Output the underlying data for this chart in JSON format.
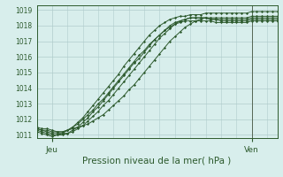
{
  "title": "",
  "xlabel": "Pression niveau de la mer( hPa )",
  "ylabel": "",
  "background_color": "#d8eeec",
  "grid_color": "#b0cccc",
  "line_color": "#2d5a2d",
  "ylim": [
    1010.8,
    1019.3
  ],
  "xlim": [
    0,
    47
  ],
  "xtick_positions": [
    3,
    42
  ],
  "xtick_labels": [
    "Jeu",
    "Ven"
  ],
  "ytick_positions": [
    1011,
    1012,
    1013,
    1014,
    1015,
    1016,
    1017,
    1018,
    1019
  ],
  "vline_x": 42,
  "series": [
    [
      1011.5,
      1011.4,
      1011.4,
      1011.3,
      1011.2,
      1011.2,
      1011.3,
      1011.4,
      1011.5,
      1011.6,
      1011.7,
      1011.9,
      1012.1,
      1012.3,
      1012.6,
      1012.9,
      1013.2,
      1013.5,
      1013.9,
      1014.2,
      1014.6,
      1015.0,
      1015.4,
      1015.8,
      1016.2,
      1016.6,
      1017.0,
      1017.3,
      1017.6,
      1017.9,
      1018.1,
      1018.3,
      1018.4,
      1018.5,
      1018.5,
      1018.5,
      1018.5,
      1018.5,
      1018.5,
      1018.5,
      1018.5,
      1018.5,
      1018.6,
      1018.6,
      1018.6,
      1018.6,
      1018.6,
      1018.6
    ],
    [
      1011.4,
      1011.3,
      1011.2,
      1011.1,
      1011.1,
      1011.1,
      1011.1,
      1011.2,
      1011.4,
      1011.6,
      1011.9,
      1012.2,
      1012.5,
      1012.9,
      1013.2,
      1013.6,
      1014.0,
      1014.4,
      1014.8,
      1015.2,
      1015.6,
      1016.0,
      1016.4,
      1016.8,
      1017.2,
      1017.5,
      1017.8,
      1018.1,
      1018.3,
      1018.4,
      1018.5,
      1018.5,
      1018.5,
      1018.5,
      1018.4,
      1018.4,
      1018.4,
      1018.4,
      1018.4,
      1018.4,
      1018.4,
      1018.4,
      1018.5,
      1018.5,
      1018.5,
      1018.5,
      1018.5,
      1018.5
    ],
    [
      1011.3,
      1011.2,
      1011.1,
      1011.0,
      1011.0,
      1011.0,
      1011.1,
      1011.3,
      1011.5,
      1011.8,
      1012.1,
      1012.5,
      1012.8,
      1013.2,
      1013.6,
      1014.0,
      1014.4,
      1014.8,
      1015.2,
      1015.6,
      1015.9,
      1016.3,
      1016.7,
      1017.1,
      1017.4,
      1017.7,
      1018.0,
      1018.2,
      1018.3,
      1018.4,
      1018.5,
      1018.5,
      1018.5,
      1018.5,
      1018.4,
      1018.4,
      1018.3,
      1018.3,
      1018.3,
      1018.3,
      1018.3,
      1018.3,
      1018.4,
      1018.4,
      1018.4,
      1018.4,
      1018.4,
      1018.4
    ],
    [
      1011.4,
      1011.3,
      1011.3,
      1011.2,
      1011.2,
      1011.2,
      1011.3,
      1011.5,
      1011.7,
      1012.0,
      1012.3,
      1012.6,
      1013.0,
      1013.3,
      1013.7,
      1014.1,
      1014.5,
      1014.9,
      1015.3,
      1015.7,
      1016.1,
      1016.4,
      1016.8,
      1017.1,
      1017.4,
      1017.7,
      1017.9,
      1018.1,
      1018.2,
      1018.3,
      1018.3,
      1018.3,
      1018.3,
      1018.3,
      1018.3,
      1018.2,
      1018.2,
      1018.2,
      1018.2,
      1018.2,
      1018.2,
      1018.2,
      1018.3,
      1018.3,
      1018.3,
      1018.3,
      1018.3,
      1018.3
    ],
    [
      1011.2,
      1011.1,
      1011.0,
      1010.9,
      1011.0,
      1011.1,
      1011.3,
      1011.5,
      1011.8,
      1012.1,
      1012.5,
      1012.9,
      1013.3,
      1013.7,
      1014.1,
      1014.5,
      1014.9,
      1015.4,
      1015.8,
      1016.2,
      1016.6,
      1017.0,
      1017.4,
      1017.7,
      1018.0,
      1018.2,
      1018.4,
      1018.5,
      1018.6,
      1018.6,
      1018.7,
      1018.7,
      1018.7,
      1018.8,
      1018.8,
      1018.8,
      1018.8,
      1018.8,
      1018.8,
      1018.8,
      1018.8,
      1018.8,
      1018.9,
      1018.9,
      1018.9,
      1018.9,
      1018.9,
      1018.9
    ]
  ]
}
